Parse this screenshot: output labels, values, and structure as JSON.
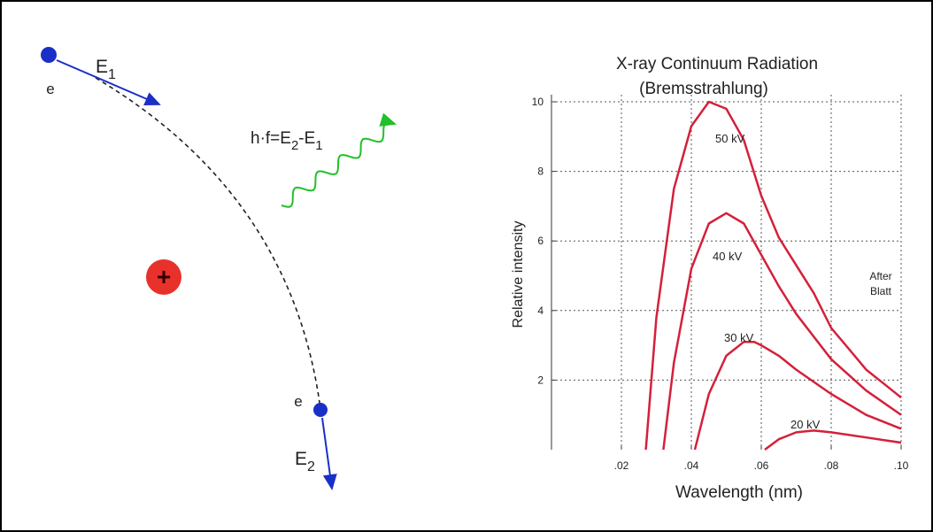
{
  "diagram": {
    "electron_in": "e",
    "energy_in": {
      "base": "E",
      "sub": "1"
    },
    "photon_formula": [
      "h·f=E",
      "2",
      "-E",
      "1"
    ],
    "nucleus": "+",
    "electron_out": "e",
    "energy_out": {
      "base": "E",
      "sub": "2"
    }
  },
  "chart_data": {
    "type": "line",
    "title": [
      "X-ray Continuum Radiation",
      "(Bremsstrahlung)"
    ],
    "x_label": "Wavelength (nm)",
    "y_label": "Relative intensity",
    "annotation": [
      "After",
      "Blatt"
    ],
    "xlim": [
      0,
      0.1
    ],
    "ylim": [
      0,
      10
    ],
    "xticks": [
      {
        "value": 0.02,
        "label": ".02"
      },
      {
        "value": 0.04,
        "label": ".04"
      },
      {
        "value": 0.06,
        "label": ".06"
      },
      {
        "value": 0.08,
        "label": ".08"
      },
      {
        "value": 0.1,
        "label": ".10"
      }
    ],
    "yticks": [
      2,
      4,
      6,
      8,
      10
    ],
    "grid": true,
    "series": [
      {
        "name": "50 kV",
        "color": "#d4203a",
        "x": [
          0.027,
          0.03,
          0.035,
          0.04,
          0.045,
          0.05,
          0.055,
          0.06,
          0.065,
          0.07,
          0.075,
          0.08,
          0.085,
          0.09,
          0.095,
          0.1
        ],
        "values": [
          0,
          3.8,
          7.5,
          9.3,
          10,
          9.8,
          8.9,
          7.3,
          6.1,
          5.3,
          4.5,
          3.5,
          2.9,
          2.3,
          1.9,
          1.5
        ]
      },
      {
        "name": "40 kV",
        "color": "#d4203a",
        "x": [
          0.032,
          0.035,
          0.04,
          0.045,
          0.05,
          0.055,
          0.06,
          0.065,
          0.07,
          0.08,
          0.09,
          0.1
        ],
        "values": [
          0,
          2.5,
          5.2,
          6.5,
          6.8,
          6.5,
          5.6,
          4.7,
          3.9,
          2.6,
          1.7,
          1.0
        ]
      },
      {
        "name": "30 kV",
        "color": "#d4203a",
        "x": [
          0.041,
          0.045,
          0.05,
          0.055,
          0.058,
          0.06,
          0.065,
          0.07,
          0.08,
          0.09,
          0.1
        ],
        "values": [
          0,
          1.6,
          2.7,
          3.1,
          3.1,
          3.0,
          2.7,
          2.3,
          1.6,
          1.0,
          0.6
        ]
      },
      {
        "name": "20 kV",
        "color": "#d4203a",
        "x": [
          0.061,
          0.065,
          0.07,
          0.075,
          0.08,
          0.09,
          0.1
        ],
        "values": [
          0,
          0.3,
          0.5,
          0.55,
          0.5,
          0.35,
          0.2
        ]
      }
    ]
  }
}
